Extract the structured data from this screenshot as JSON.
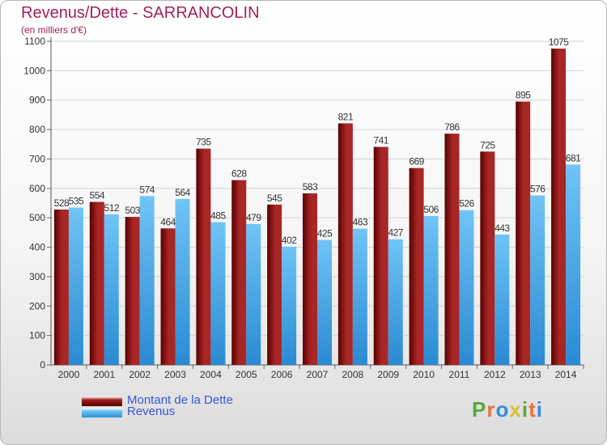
{
  "title": "Revenus/Dette - SARRANCOLIN",
  "subtitle": "(en milliers d'€)",
  "colors": {
    "title": "#a3205c",
    "debt_dark": "#5a0000",
    "debt_light": "#a82626",
    "revenue_dark": "#2a8ad2",
    "revenue_light": "#70c4f6",
    "legend_text": "#3a55d8"
  },
  "logo": {
    "text": "Proxiti",
    "colors": [
      "#5aa83c",
      "#e8733a",
      "#3a8ad8",
      "#d8c23a",
      "#5aa83c",
      "#e8733a",
      "#3a8ad8"
    ]
  },
  "chart_data": {
    "type": "bar",
    "title": "Revenus/Dette - SARRANCOLIN",
    "subtitle": "(en milliers d'€)",
    "categories": [
      "2000",
      "2001",
      "2002",
      "2003",
      "2004",
      "2005",
      "2006",
      "2007",
      "2008",
      "2009",
      "2010",
      "2011",
      "2012",
      "2013",
      "2014"
    ],
    "series": [
      {
        "name": "Montant de la Dette",
        "values": [
          528,
          554,
          503,
          464,
          735,
          628,
          545,
          583,
          821,
          741,
          669,
          786,
          725,
          895,
          1075
        ]
      },
      {
        "name": "Revenus",
        "values": [
          535,
          512,
          574,
          564,
          485,
          479,
          402,
          425,
          463,
          427,
          506,
          526,
          443,
          576,
          681
        ]
      }
    ],
    "ylim": [
      0,
      1100
    ],
    "yticks": [
      0,
      100,
      200,
      300,
      400,
      500,
      600,
      700,
      800,
      900,
      1000,
      1100
    ],
    "grid": true,
    "legend_position": "bottom-left"
  }
}
